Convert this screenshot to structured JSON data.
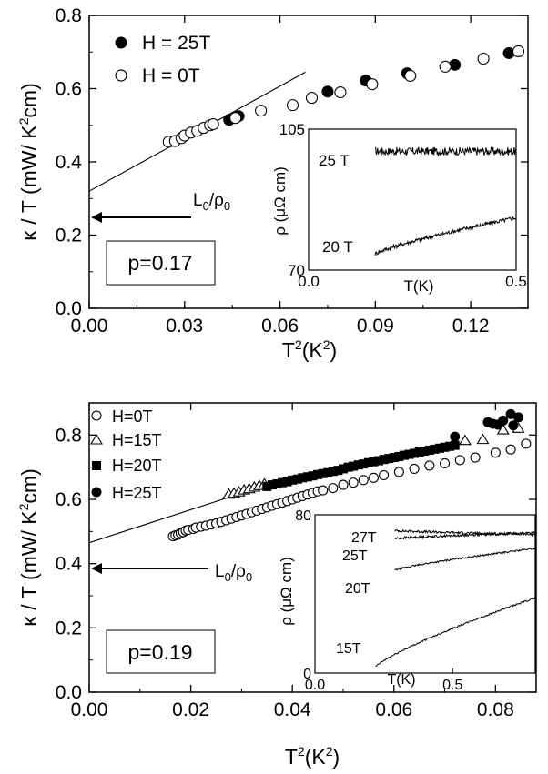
{
  "chart_data": [
    {
      "type": "scatter",
      "xlabel": "T²(K²)",
      "ylabel": "κ / T (mW/ K²cm)",
      "xlim": [
        0,
        0.138
      ],
      "ylim": [
        0,
        0.8
      ],
      "x_ticks": [
        "0.00",
        "0.03",
        "0.06",
        "0.09",
        "0.12"
      ],
      "y_ticks": [
        "0.0",
        "0.2",
        "0.4",
        "0.6",
        "0.8"
      ],
      "series": [
        {
          "name": "H = 25T",
          "marker": "filled-circle",
          "points": [
            [
              0.044,
              0.515
            ],
            [
              0.047,
              0.525
            ],
            [
              0.075,
              0.592
            ],
            [
              0.087,
              0.622
            ],
            [
              0.1,
              0.642
            ],
            [
              0.115,
              0.665
            ],
            [
              0.132,
              0.697
            ]
          ]
        },
        {
          "name": "H = 0T",
          "marker": "open-circle",
          "points": [
            [
              0.025,
              0.455
            ],
            [
              0.027,
              0.457
            ],
            [
              0.029,
              0.465
            ],
            [
              0.03,
              0.472
            ],
            [
              0.032,
              0.48
            ],
            [
              0.034,
              0.485
            ],
            [
              0.036,
              0.493
            ],
            [
              0.038,
              0.5
            ],
            [
              0.039,
              0.503
            ],
            [
              0.046,
              0.52
            ],
            [
              0.054,
              0.54
            ],
            [
              0.064,
              0.555
            ],
            [
              0.07,
              0.575
            ],
            [
              0.079,
              0.59
            ],
            [
              0.089,
              0.612
            ],
            [
              0.101,
              0.635
            ],
            [
              0.112,
              0.66
            ],
            [
              0.124,
              0.682
            ],
            [
              0.135,
              0.702
            ]
          ]
        }
      ],
      "fit_line": {
        "x": [
          0,
          0.068
        ],
        "y": [
          0.32,
          0.645
        ]
      },
      "arrow": {
        "label_main": "L",
        "label_sub1": "0",
        "label_slash": "/ρ",
        "label_sub2": "0",
        "y": 0.245,
        "x_start": 0.03,
        "x_end": 0
      },
      "annotation": "p=0.17",
      "inset": {
        "type": "line",
        "xlabel": "T(K)",
        "ylabel": "ρ (μΩ cm)",
        "xlim": [
          0,
          0.5
        ],
        "ylim": [
          70,
          105
        ],
        "x_ticks": [
          "0.0",
          "0.5"
        ],
        "y_ticks": [
          "70",
          "105"
        ],
        "series": [
          {
            "name": "25 T",
            "x_range": [
              0.16,
              0.5
            ],
            "y_start": 99.5,
            "y_end": 99.5,
            "noise": 1.0
          },
          {
            "name": "20 T",
            "x_range": [
              0.16,
              0.5
            ],
            "y_start": 74,
            "y_end": 83,
            "noise": 0.5
          }
        ]
      }
    },
    {
      "type": "scatter",
      "xlabel": "T²(K²)",
      "ylabel": "κ / T (mW/ K²cm)",
      "xlim": [
        0,
        0.088
      ],
      "ylim": [
        0,
        0.9
      ],
      "x_ticks": [
        "0.00",
        "0.02",
        "0.04",
        "0.06",
        "0.08"
      ],
      "y_ticks": [
        "0.0",
        "0.2",
        "0.4",
        "0.6",
        "0.8"
      ],
      "series": [
        {
          "name": "H=0T",
          "marker": "open-circle",
          "points": [
            [
              0.0165,
              0.485
            ],
            [
              0.017,
              0.488
            ],
            [
              0.0175,
              0.49
            ],
            [
              0.018,
              0.495
            ],
            [
              0.0185,
              0.498
            ],
            [
              0.019,
              0.503
            ],
            [
              0.0195,
              0.505
            ],
            [
              0.0205,
              0.508
            ],
            [
              0.021,
              0.512
            ],
            [
              0.022,
              0.515
            ],
            [
              0.023,
              0.518
            ],
            [
              0.024,
              0.522
            ],
            [
              0.025,
              0.525
            ],
            [
              0.026,
              0.53
            ],
            [
              0.027,
              0.535
            ],
            [
              0.028,
              0.54
            ],
            [
              0.029,
              0.545
            ],
            [
              0.03,
              0.55
            ],
            [
              0.031,
              0.555
            ],
            [
              0.032,
              0.56
            ],
            [
              0.033,
              0.565
            ],
            [
              0.034,
              0.57
            ],
            [
              0.035,
              0.575
            ],
            [
              0.036,
              0.58
            ],
            [
              0.037,
              0.585
            ],
            [
              0.038,
              0.59
            ],
            [
              0.039,
              0.595
            ],
            [
              0.04,
              0.6
            ],
            [
              0.041,
              0.605
            ],
            [
              0.042,
              0.61
            ],
            [
              0.043,
              0.615
            ],
            [
              0.044,
              0.62
            ],
            [
              0.045,
              0.625
            ],
            [
              0.046,
              0.628
            ],
            [
              0.048,
              0.635
            ],
            [
              0.05,
              0.645
            ],
            [
              0.052,
              0.652
            ],
            [
              0.054,
              0.66
            ],
            [
              0.056,
              0.667
            ],
            [
              0.058,
              0.675
            ],
            [
              0.061,
              0.685
            ],
            [
              0.064,
              0.695
            ],
            [
              0.067,
              0.705
            ],
            [
              0.07,
              0.712
            ],
            [
              0.073,
              0.722
            ],
            [
              0.076,
              0.73
            ],
            [
              0.08,
              0.745
            ],
            [
              0.083,
              0.755
            ],
            [
              0.086,
              0.773
            ]
          ]
        },
        {
          "name": "H=15T",
          "marker": "open-triangle",
          "points": [
            [
              0.0275,
              0.615
            ],
            [
              0.0285,
              0.618
            ],
            [
              0.0295,
              0.622
            ],
            [
              0.0305,
              0.628
            ],
            [
              0.0315,
              0.632
            ],
            [
              0.0325,
              0.637
            ],
            [
              0.0335,
              0.642
            ],
            [
              0.0345,
              0.647
            ],
            [
              0.074,
              0.782
            ],
            [
              0.0775,
              0.785
            ],
            [
              0.0815,
              0.815
            ],
            [
              0.0845,
              0.82
            ]
          ]
        },
        {
          "name": "H=20T",
          "marker": "filled-square",
          "points": [
            [
              0.035,
              0.64
            ],
            [
              0.036,
              0.645
            ],
            [
              0.037,
              0.648
            ],
            [
              0.038,
              0.652
            ],
            [
              0.039,
              0.655
            ],
            [
              0.04,
              0.66
            ],
            [
              0.041,
              0.663
            ],
            [
              0.042,
              0.667
            ],
            [
              0.043,
              0.67
            ],
            [
              0.044,
              0.673
            ],
            [
              0.045,
              0.677
            ],
            [
              0.046,
              0.68
            ],
            [
              0.047,
              0.683
            ],
            [
              0.048,
              0.687
            ],
            [
              0.049,
              0.69
            ],
            [
              0.05,
              0.695
            ],
            [
              0.051,
              0.7
            ],
            [
              0.052,
              0.703
            ],
            [
              0.053,
              0.707
            ],
            [
              0.054,
              0.71
            ],
            [
              0.055,
              0.714
            ],
            [
              0.056,
              0.717
            ],
            [
              0.057,
              0.72
            ],
            [
              0.058,
              0.724
            ],
            [
              0.059,
              0.727
            ],
            [
              0.06,
              0.73
            ],
            [
              0.061,
              0.733
            ],
            [
              0.062,
              0.737
            ],
            [
              0.063,
              0.74
            ],
            [
              0.064,
              0.743
            ],
            [
              0.065,
              0.747
            ],
            [
              0.066,
              0.75
            ],
            [
              0.067,
              0.753
            ],
            [
              0.068,
              0.756
            ],
            [
              0.069,
              0.759
            ],
            [
              0.07,
              0.762
            ],
            [
              0.071,
              0.765
            ],
            [
              0.072,
              0.768
            ]
          ]
        },
        {
          "name": "H=25T",
          "marker": "filled-circle",
          "points": [
            [
              0.072,
              0.795
            ],
            [
              0.0785,
              0.84
            ],
            [
              0.0795,
              0.835
            ],
            [
              0.0805,
              0.832
            ],
            [
              0.0815,
              0.845
            ],
            [
              0.083,
              0.865
            ],
            [
              0.0835,
              0.83
            ],
            [
              0.0845,
              0.855
            ]
          ]
        }
      ],
      "fit_line": {
        "x": [
          0,
          0.034
        ],
        "y": [
          0.465,
          0.64
        ]
      },
      "arrow": {
        "label_main": "L",
        "label_sub1": "0",
        "label_slash": "/ρ",
        "label_sub2": "0",
        "y": 0.385,
        "x_start": 0.0235,
        "x_end": 0
      },
      "annotation": "p=0.19",
      "inset": {
        "type": "line",
        "xlabel": "T(K)",
        "ylabel": "ρ (μΩ cm)",
        "xlim": [
          0,
          0.8
        ],
        "ylim": [
          0,
          80
        ],
        "x_ticks": [
          "0.0",
          "0.5"
        ],
        "x_tick_values": [
          0.0,
          0.5
        ],
        "y_ticks": [
          "0",
          "80"
        ],
        "series": [
          {
            "name": "27T",
            "x_range": [
              0.29,
              0.8
            ],
            "y_start": 72,
            "y_end": 70,
            "noise": 0.6
          },
          {
            "name": "25T",
            "x_range": [
              0.29,
              0.8
            ],
            "y_start": 68,
            "y_end": 71,
            "noise": 0.6
          },
          {
            "name": "20T",
            "x_range": [
              0.29,
              0.8
            ],
            "y_start": 52,
            "y_end": 63,
            "noise": 0.4
          },
          {
            "name": "15T",
            "x_range": [
              0.22,
              0.8
            ],
            "y_start": 3,
            "y_end": 38,
            "noise": 0.4
          }
        ]
      }
    }
  ]
}
